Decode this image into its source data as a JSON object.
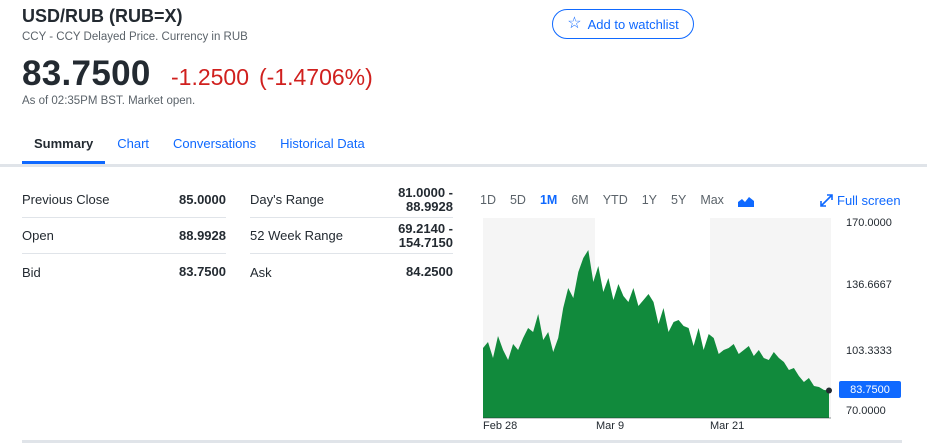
{
  "header": {
    "title": "USD/RUB (RUB=X)",
    "subtitle": "CCY - CCY Delayed Price. Currency in RUB",
    "price": "83.7500",
    "change": "-1.2500",
    "change_pct": "(-1.4706%)",
    "as_of": "As of 02:35PM BST. Market open.",
    "watchlist_label": "Add to watchlist",
    "watchlist_icon": "star-icon"
  },
  "tabs": [
    "Summary",
    "Chart",
    "Conversations",
    "Historical Data"
  ],
  "stats": {
    "previous_close": {
      "label": "Previous Close",
      "value": "85.0000"
    },
    "open": {
      "label": "Open",
      "value": "88.9928"
    },
    "bid": {
      "label": "Bid",
      "value": "83.7500"
    },
    "days_range": {
      "label": "Day's Range",
      "value1": "81.0000 -",
      "value2": "88.9928"
    },
    "week52_range": {
      "label": "52 Week Range",
      "value1": "69.2140 -",
      "value2": "154.7150"
    },
    "ask": {
      "label": "Ask",
      "value": "84.2500"
    }
  },
  "chart_controls": {
    "ranges": [
      "1D",
      "5D",
      "1M",
      "6M",
      "YTD",
      "1Y",
      "5Y",
      "Max"
    ],
    "selected": "1M",
    "chart_type_icon": "mountain-chart-icon",
    "fullscreen_label": "Full screen",
    "fullscreen_icon": "expand-icon"
  },
  "chart_data": {
    "type": "area",
    "x_tick_labels": [
      "Feb 28",
      "Mar 9",
      "Mar 21"
    ],
    "y_tick_labels": [
      "170.0000",
      "136.6667",
      "103.3333",
      "70.0000"
    ],
    "ylim": [
      70,
      170
    ],
    "current_value_label": "83.7500",
    "current_value": 83.75,
    "color": "#118a3c",
    "series": [
      {
        "values": [
          105,
          108,
          100,
          111,
          104,
          99,
          107,
          104,
          110,
          115,
          113,
          122,
          109,
          113,
          103,
          110,
          125,
          135,
          130,
          143,
          150,
          154,
          138,
          146,
          133,
          140,
          129,
          137,
          131,
          128,
          135,
          126,
          129,
          132,
          128,
          117,
          125,
          113,
          118,
          119,
          116,
          115,
          106,
          115,
          104,
          112,
          110,
          102,
          104,
          105,
          107,
          102,
          104,
          106,
          101,
          104,
          100,
          99,
          103,
          100,
          98,
          94,
          95,
          91,
          88,
          90,
          86,
          85.5,
          84,
          83.75
        ]
      }
    ]
  }
}
